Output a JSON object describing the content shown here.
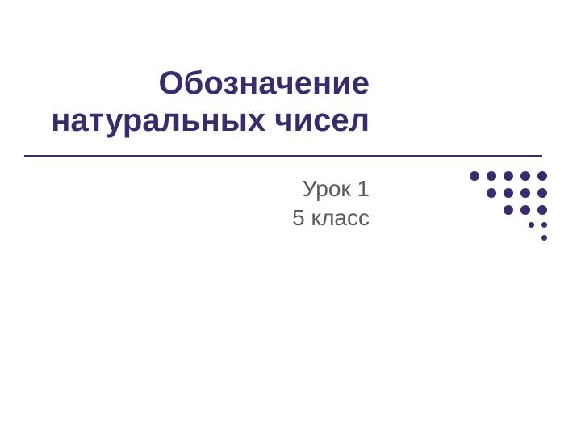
{
  "slide": {
    "title_line1": "Обозначение",
    "title_line2": "натуральных чисел",
    "subtitle_line1": "Урок 1",
    "subtitle_line2": "5 класс",
    "title_color": "#3b2b6b",
    "subtitle_color": "#5a5a5a",
    "hr_color": "#3b2b6b",
    "background_color": "#ffffff",
    "title_fontsize": 40,
    "subtitle_fontsize": 28
  },
  "decoration": {
    "dot_color": "#3b2b6b",
    "large_radius": 12,
    "small_radius": 7,
    "rows": [
      {
        "count": 5,
        "size": "large"
      },
      {
        "count": 4,
        "size": "large"
      },
      {
        "count": 3,
        "size": "large"
      },
      {
        "count": 2,
        "size": "small"
      },
      {
        "count": 1,
        "size": "small"
      }
    ]
  }
}
